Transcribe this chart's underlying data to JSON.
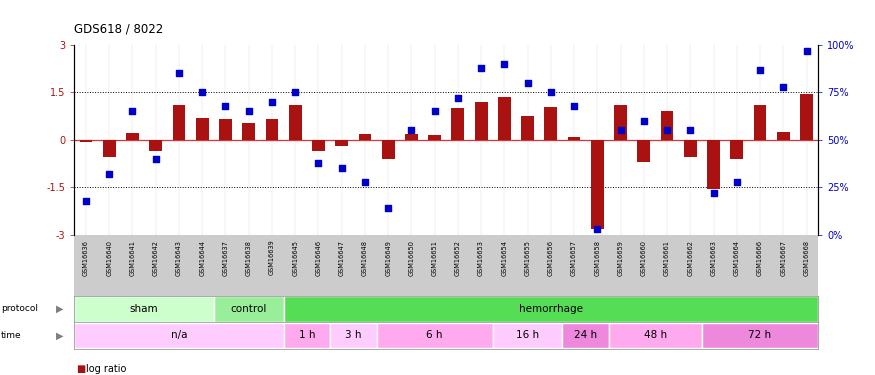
{
  "title": "GDS618 / 8022",
  "samples": [
    "GSM16636",
    "GSM16640",
    "GSM16641",
    "GSM16642",
    "GSM16643",
    "GSM16644",
    "GSM16637",
    "GSM16638",
    "GSM16639",
    "GSM16645",
    "GSM16646",
    "GSM16647",
    "GSM16648",
    "GSM16649",
    "GSM16650",
    "GSM16651",
    "GSM16652",
    "GSM16653",
    "GSM16654",
    "GSM16655",
    "GSM16656",
    "GSM16657",
    "GSM16658",
    "GSM16659",
    "GSM16660",
    "GSM16661",
    "GSM16662",
    "GSM16663",
    "GSM16664",
    "GSM16666",
    "GSM16667",
    "GSM16668"
  ],
  "log_ratio": [
    -0.05,
    -0.55,
    0.22,
    -0.35,
    1.1,
    0.7,
    0.65,
    0.55,
    0.65,
    1.1,
    -0.35,
    -0.18,
    0.18,
    -0.6,
    0.2,
    0.15,
    1.0,
    1.2,
    1.35,
    0.75,
    1.05,
    0.1,
    -2.8,
    1.1,
    -0.7,
    0.9,
    -0.55,
    -1.55,
    -0.6,
    1.1,
    0.25,
    1.45
  ],
  "pct_rank": [
    18,
    32,
    65,
    40,
    85,
    75,
    68,
    65,
    70,
    75,
    38,
    35,
    28,
    14,
    55,
    65,
    72,
    88,
    90,
    80,
    75,
    68,
    3,
    55,
    60,
    55,
    55,
    22,
    28,
    87,
    78,
    97
  ],
  "protocol_groups": [
    {
      "label": "sham",
      "start": 0,
      "end": 6,
      "color": "#ccffcc"
    },
    {
      "label": "control",
      "start": 6,
      "end": 9,
      "color": "#99ee99"
    },
    {
      "label": "hemorrhage",
      "start": 9,
      "end": 32,
      "color": "#55dd55"
    }
  ],
  "time_groups": [
    {
      "label": "n/a",
      "start": 0,
      "end": 9,
      "color": "#ffccff"
    },
    {
      "label": "1 h",
      "start": 9,
      "end": 11,
      "color": "#ffaaee"
    },
    {
      "label": "3 h",
      "start": 11,
      "end": 13,
      "color": "#ffccff"
    },
    {
      "label": "6 h",
      "start": 13,
      "end": 18,
      "color": "#ffaaee"
    },
    {
      "label": "16 h",
      "start": 18,
      "end": 21,
      "color": "#ffccff"
    },
    {
      "label": "24 h",
      "start": 21,
      "end": 23,
      "color": "#ee88dd"
    },
    {
      "label": "48 h",
      "start": 23,
      "end": 27,
      "color": "#ffaaee"
    },
    {
      "label": "72 h",
      "start": 27,
      "end": 32,
      "color": "#ee88dd"
    }
  ],
  "bar_color": "#aa1111",
  "dot_color": "#0000cc",
  "ylim": [
    -3,
    3
  ],
  "y2lim": [
    0,
    100
  ],
  "yticks_left": [
    -3,
    -1.5,
    0,
    1.5,
    3
  ],
  "ytick_labels_left": [
    "-3",
    "-1.5",
    "0",
    "1.5",
    "3"
  ],
  "yticks_right": [
    0,
    25,
    50,
    75,
    100
  ],
  "ytick_labels_right": [
    "0%",
    "25%",
    "50%",
    "75%",
    "100%"
  ],
  "background_color": "#ffffff",
  "plot_bg_color": "#ffffff",
  "xtick_bg_color": "#cccccc"
}
